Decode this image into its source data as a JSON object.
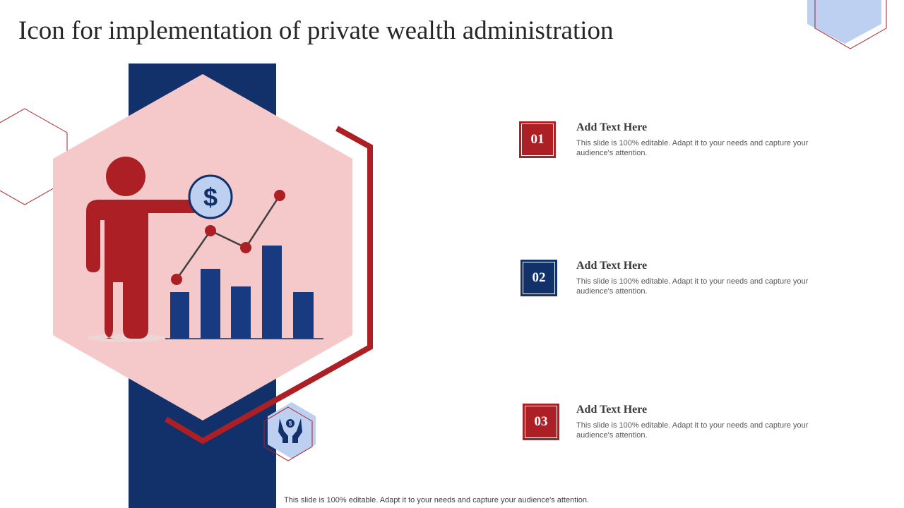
{
  "slide": {
    "title": "Icon for implementation of private wealth administration",
    "footer": "This slide is 100% editable. Adapt it to your needs and capture your audience's attention."
  },
  "colors": {
    "navy": "#12306a",
    "red": "#ac1f24",
    "pink": "#f5c9c9",
    "light_blue": "#bdd0f1"
  },
  "icons": [
    "person-presenting-icon",
    "dollar-coin-icon",
    "bar-chart-icon",
    "hands-holding-coins-icon"
  ],
  "items": [
    {
      "number": "01",
      "title": "Add Text Here",
      "description": "This slide is 100% editable. Adapt it to your needs and capture your audience's attention.",
      "color": "#ac1f24"
    },
    {
      "number": "02",
      "title": "Add Text Here",
      "description": "This slide is 100% editable. Adapt it to your needs and capture your audience's attention.",
      "color": "#12306a"
    },
    {
      "number": "03",
      "title": "Add Text Here",
      "description": "This slide is 100% editable. Adapt it to your needs and capture your audience's attention.",
      "color": "#ac1f24"
    }
  ]
}
